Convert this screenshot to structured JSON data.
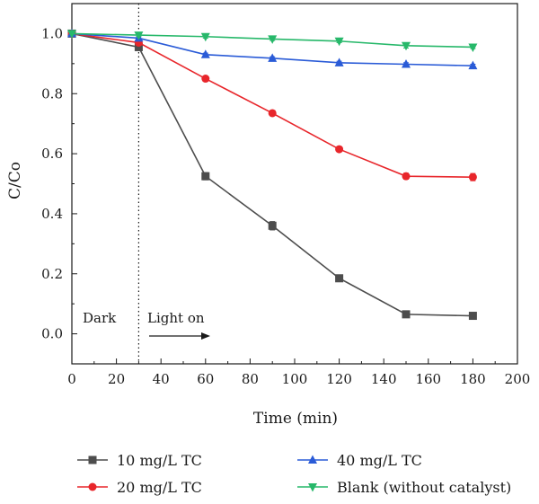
{
  "chart_data": {
    "type": "line",
    "xlabel": "Time (min)",
    "ylabel": "C/Co",
    "xlim": [
      0,
      200
    ],
    "ylim": [
      -0.1,
      1.1
    ],
    "x_ticks": [
      0,
      20,
      40,
      60,
      80,
      100,
      120,
      140,
      160,
      180,
      200
    ],
    "y_ticks": [
      0.0,
      0.2,
      0.4,
      0.6,
      0.8,
      1.0
    ],
    "y_tick_labels": [
      "0.0",
      "0.2",
      "0.4",
      "0.6",
      "0.8",
      "1.0"
    ],
    "x": [
      0,
      30,
      60,
      90,
      120,
      150,
      180
    ],
    "series": [
      {
        "name": "10 mg/L TC",
        "color": "#4d4d4d",
        "marker": "square",
        "values": [
          1.0,
          0.955,
          0.525,
          0.36,
          0.185,
          0.065,
          0.06
        ],
        "errors": [
          0,
          0.01,
          0.012,
          0.014,
          0.008,
          0.006,
          0.006
        ]
      },
      {
        "name": "20 mg/L TC",
        "color": "#e8262b",
        "marker": "circle",
        "values": [
          1.0,
          0.97,
          0.85,
          0.735,
          0.615,
          0.525,
          0.522
        ],
        "errors": [
          0,
          0.008,
          0.008,
          0.008,
          0.008,
          0.01,
          0.012
        ]
      },
      {
        "name": "40 mg/L TC",
        "color": "#2a5bd7",
        "marker": "triangle-up",
        "values": [
          1.0,
          0.985,
          0.93,
          0.918,
          0.903,
          0.898,
          0.893
        ],
        "errors": [
          0,
          0.005,
          0.005,
          0.005,
          0.005,
          0.005,
          0.005
        ]
      },
      {
        "name": "Blank (without catalyst)",
        "color": "#27b86a",
        "marker": "triangle-down",
        "values": [
          1.0,
          0.995,
          0.99,
          0.982,
          0.975,
          0.96,
          0.955
        ],
        "errors": [
          0,
          0.005,
          0.005,
          0.005,
          0.005,
          0.008,
          0.005
        ]
      }
    ],
    "vline_x": 30,
    "annotations": {
      "dark": "Dark",
      "light": "Light on"
    },
    "legend_position": "bottom",
    "grid": false
  }
}
